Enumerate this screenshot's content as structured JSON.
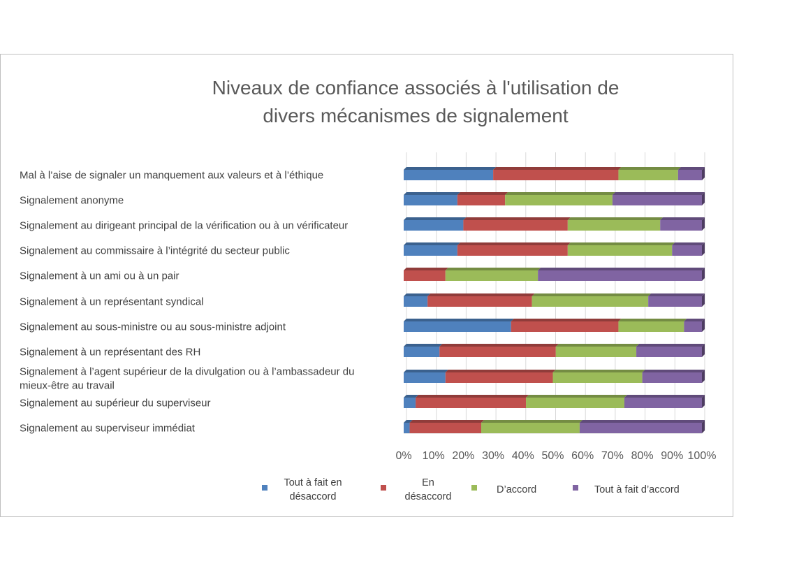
{
  "chart_data": {
    "type": "bar",
    "orientation": "horizontal",
    "stacked": "percent",
    "title": "Niveaux de confiance associés à l'utilisation de\ndivers mécanismes de signalement",
    "categories": [
      "Mal à l’aise de signaler un manquement aux valeurs et à l’éthique",
      "Signalement anonyme",
      "Signalement au dirigeant principal de la vérification ou à un vérificateur",
      "Signalement au commissaire à l’intégrité du secteur public",
      "Signalement à un ami ou à un pair",
      "Signalement à un représentant syndical",
      "Signalement au sous-ministre ou au sous-ministre adjoint",
      "Signalement à un représentant des RH",
      "Signalement à l’agent supérieur de la divulgation ou à l’ambassadeur du mieux-être au travail",
      "Signalement au supérieur du superviseur",
      "Signalement au superviseur immédiat"
    ],
    "series": [
      {
        "name": "Tout à fait en désaccord",
        "color": "#4f81bd",
        "values": [
          30,
          18,
          20,
          18,
          0,
          8,
          36,
          12,
          14,
          4,
          2
        ]
      },
      {
        "name": "En désaccord",
        "color": "#c0504d",
        "values": [
          42,
          16,
          35,
          37,
          14,
          35,
          36,
          39,
          36,
          37,
          24
        ]
      },
      {
        "name": "D’accord",
        "color": "#9bbb59",
        "values": [
          20,
          36,
          31,
          35,
          31,
          39,
          22,
          27,
          30,
          33,
          33
        ]
      },
      {
        "name": "Tout à fait d’accord",
        "color": "#8064a2",
        "values": [
          8,
          30,
          14,
          10,
          55,
          18,
          6,
          22,
          20,
          26,
          41
        ]
      }
    ],
    "x_ticks": [
      "0%",
      "10%",
      "20%",
      "30%",
      "40%",
      "50%",
      "60%",
      "70%",
      "80%",
      "90%",
      "100%"
    ],
    "xlim": [
      0,
      100
    ],
    "legend_position": "bottom",
    "grid": true
  }
}
